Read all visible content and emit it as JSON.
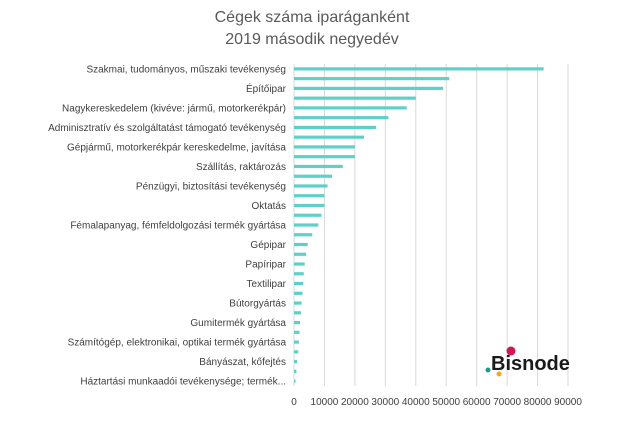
{
  "chart_data": {
    "type": "bar",
    "orientation": "horizontal",
    "title_line1": "Cégek száma iparáganként",
    "title_line2": "2019 második negyedév",
    "xlabel": "",
    "ylabel": "",
    "xlim": [
      0,
      90000
    ],
    "ticks": [
      0,
      10000,
      20000,
      30000,
      40000,
      50000,
      60000,
      70000,
      80000,
      90000
    ],
    "grid": true,
    "legend": "none",
    "bar_color": "#5fd0c8",
    "categories": [
      {
        "label": "Szakmai, tudományos, műszaki tevékenység",
        "value": 82000
      },
      {
        "label": "",
        "value": 51000
      },
      {
        "label": "Építőipar",
        "value": 49000
      },
      {
        "label": "",
        "value": 40000
      },
      {
        "label": "Nagykereskedelem (kivéve: jármű, motorkerékpár)",
        "value": 37000
      },
      {
        "label": "",
        "value": 31000
      },
      {
        "label": "Adminisztratív és szolgáltatást támogató tevékenység",
        "value": 27000
      },
      {
        "label": "",
        "value": 23000
      },
      {
        "label": "Gépjármű, motorkerékpár kereskedelme, javítása",
        "value": 20000
      },
      {
        "label": "",
        "value": 20000
      },
      {
        "label": "Szállítás, raktározás",
        "value": 16000
      },
      {
        "label": "",
        "value": 12500
      },
      {
        "label": "Pénzügyi, biztosítási tevékenység",
        "value": 11000
      },
      {
        "label": "",
        "value": 10000
      },
      {
        "label": "Oktatás",
        "value": 10000
      },
      {
        "label": "",
        "value": 9000
      },
      {
        "label": "Fémalapanyag, fémfeldolgozási termék gyártása",
        "value": 8000
      },
      {
        "label": "",
        "value": 6000
      },
      {
        "label": "Gépipar",
        "value": 4500
      },
      {
        "label": "",
        "value": 4000
      },
      {
        "label": "Papíripar",
        "value": 3500
      },
      {
        "label": "",
        "value": 3200
      },
      {
        "label": "Textilipar",
        "value": 3000
      },
      {
        "label": "",
        "value": 2800
      },
      {
        "label": "Bútorgyártás",
        "value": 2500
      },
      {
        "label": "",
        "value": 2300
      },
      {
        "label": "Gumitermék gyártása",
        "value": 2000
      },
      {
        "label": "",
        "value": 1800
      },
      {
        "label": "Számítógép, elektronikai, optikai termék gyártása",
        "value": 1600
      },
      {
        "label": "",
        "value": 1400
      },
      {
        "label": "Bányászat, kőfejtés",
        "value": 1000
      },
      {
        "label": "",
        "value": 800
      },
      {
        "label": "Háztartási munkaadói tevékenysége; termék...",
        "value": 500
      }
    ]
  },
  "logo": {
    "text": "Bisnode",
    "dot_colors": [
      "#d4145a",
      "#1b9e8f",
      "#f5a623"
    ]
  }
}
